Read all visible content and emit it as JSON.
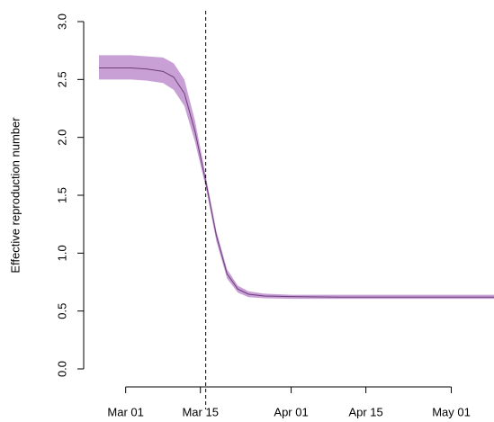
{
  "chart_data": {
    "type": "line",
    "ylabel": "Effective reproduction number",
    "x": [
      "Feb 25",
      "Feb 28",
      "Mar 02",
      "Mar 05",
      "Mar 08",
      "Mar 10",
      "Mar 12",
      "Mar 14",
      "Mar 16",
      "Mar 18",
      "Mar 20",
      "Mar 22",
      "Mar 24",
      "Mar 27",
      "Apr 01",
      "Apr 10",
      "Apr 20",
      "May 01",
      "May 09"
    ],
    "series": [
      {
        "color": "#6a3d7a",
        "values": [
          2.6,
          2.6,
          2.6,
          2.59,
          2.57,
          2.52,
          2.38,
          2.05,
          1.62,
          1.15,
          0.82,
          0.69,
          0.645,
          0.63,
          0.625,
          0.62,
          0.62,
          0.62,
          0.62
        ],
        "lower": [
          2.5,
          2.5,
          2.5,
          2.49,
          2.47,
          2.41,
          2.27,
          1.96,
          1.57,
          1.1,
          0.78,
          0.66,
          0.62,
          0.61,
          0.605,
          0.605,
          0.605,
          0.605,
          0.605
        ],
        "upper": [
          2.71,
          2.71,
          2.71,
          2.7,
          2.69,
          2.64,
          2.5,
          2.14,
          1.67,
          1.19,
          0.86,
          0.72,
          0.67,
          0.65,
          0.64,
          0.64,
          0.64,
          0.64,
          0.64
        ],
        "band_color": "#c9a0d6"
      }
    ],
    "vline": "Mar 16",
    "xlim": [
      "Feb 25",
      "May 09"
    ],
    "xticks": [
      "Mar 01",
      "Mar 15",
      "Apr 01",
      "Apr 15",
      "May 01"
    ],
    "ylim": [
      0,
      3
    ],
    "yticks": [
      {
        "value": 0,
        "label": "0.0"
      },
      0.5,
      {
        "value": 1,
        "label": "1.0"
      },
      1.5,
      {
        "value": 2,
        "label": "2.0"
      },
      2.5,
      {
        "value": 3,
        "label": "3.0"
      }
    ]
  }
}
